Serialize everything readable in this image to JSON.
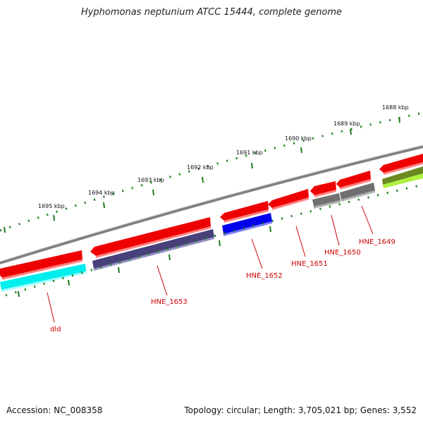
{
  "title": "Hyphomonas neptunium ATCC 15444, complete genome",
  "footer": {
    "accession": "Accession: NC_008358",
    "summary": "Topology: circular; Length: 3,705,021 bp; Genes: 3,552"
  },
  "ruler": {
    "labels": [
      "1688 kbp",
      "1689 kbp",
      "1690 kbp",
      "1691 kbp",
      "1692 kbp",
      "1693 kbp",
      "1694 kbp",
      "1695 kbp"
    ]
  },
  "genes": {
    "labels": [
      "HNE_1649",
      "HNE_1650",
      "HNE_1651",
      "HNE_1652",
      "HNE_1653",
      "dld"
    ]
  },
  "colors": {
    "forward_cds": "#ee0000",
    "cyan_feature": "#00eeee",
    "indigo_feature": "#48407a",
    "blue_feature": "#0000ee",
    "gray_feature": "#707070",
    "olive_feature": "#6a8a20",
    "lime_feature": "#b0f040",
    "backbone": "#808080",
    "tick": "#1a7a1a",
    "label": "#cc0000"
  }
}
